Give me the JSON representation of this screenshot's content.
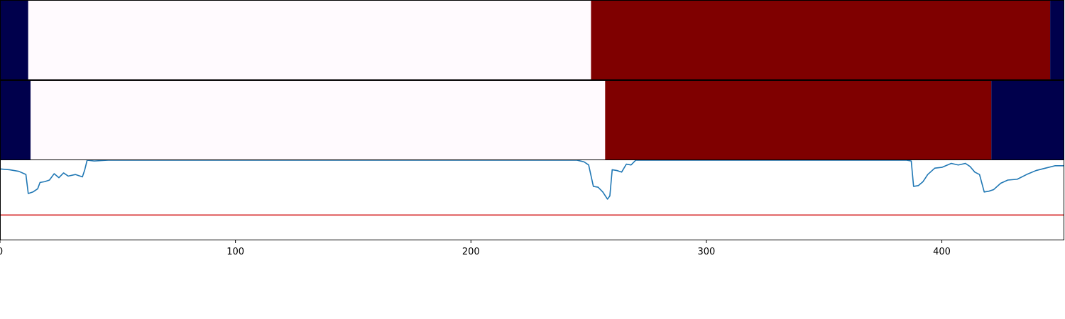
{
  "chart_data": [
    {
      "type": "heatmap",
      "colormap": "seismic",
      "colors": {
        "low": "#00004c",
        "mid": "#fffafe",
        "high": "#7f0000"
      },
      "x_range": [
        0,
        452
      ],
      "segments": [
        {
          "start": 0,
          "end": 12,
          "level": "low"
        },
        {
          "start": 12,
          "end": 251,
          "level": "mid"
        },
        {
          "start": 251,
          "end": 446,
          "level": "high"
        },
        {
          "start": 446,
          "end": 452,
          "level": "low"
        }
      ]
    },
    {
      "type": "heatmap",
      "colormap": "seismic",
      "colors": {
        "low": "#00004c",
        "mid": "#fffafe",
        "high": "#7f0000"
      },
      "x_range": [
        0,
        452
      ],
      "segments": [
        {
          "start": 0,
          "end": 13,
          "level": "low"
        },
        {
          "start": 13,
          "end": 257,
          "level": "mid"
        },
        {
          "start": 257,
          "end": 421,
          "level": "high"
        },
        {
          "start": 421,
          "end": 452,
          "level": "low"
        }
      ]
    },
    {
      "type": "line",
      "xlim": [
        0,
        452
      ],
      "ylim": [
        0,
        1
      ],
      "xticks": [
        0,
        100,
        200,
        300,
        400
      ],
      "grid": false,
      "series": [
        {
          "color": "#1f77b4",
          "points": [
            [
              0,
              0.89
            ],
            [
              4,
              0.88
            ],
            [
              8,
              0.86
            ],
            [
              11,
              0.82
            ],
            [
              12,
              0.58
            ],
            [
              14,
              0.6
            ],
            [
              16,
              0.64
            ],
            [
              17,
              0.72
            ],
            [
              19,
              0.73
            ],
            [
              21,
              0.75
            ],
            [
              23,
              0.83
            ],
            [
              25,
              0.78
            ],
            [
              27,
              0.84
            ],
            [
              29,
              0.8
            ],
            [
              32,
              0.82
            ],
            [
              35,
              0.79
            ],
            [
              36,
              0.88
            ],
            [
              37,
              1.0
            ],
            [
              40,
              0.99
            ],
            [
              46,
              1.0
            ],
            [
              55,
              1.0
            ],
            [
              120,
              1.0
            ],
            [
              200,
              1.0
            ],
            [
              245,
              1.0
            ],
            [
              248,
              0.98
            ],
            [
              250,
              0.94
            ],
            [
              252,
              0.67
            ],
            [
              254,
              0.66
            ],
            [
              256,
              0.6
            ],
            [
              258,
              0.51
            ],
            [
              259,
              0.55
            ],
            [
              260,
              0.88
            ],
            [
              262,
              0.87
            ],
            [
              264,
              0.85
            ],
            [
              266,
              0.95
            ],
            [
              268,
              0.94
            ],
            [
              270,
              1.0
            ],
            [
              275,
              1.0
            ],
            [
              300,
              1.0
            ],
            [
              360,
              1.0
            ],
            [
              385,
              1.0
            ],
            [
              387,
              0.99
            ],
            [
              388,
              0.67
            ],
            [
              390,
              0.68
            ],
            [
              392,
              0.73
            ],
            [
              394,
              0.82
            ],
            [
              397,
              0.9
            ],
            [
              400,
              0.91
            ],
            [
              404,
              0.96
            ],
            [
              407,
              0.94
            ],
            [
              410,
              0.96
            ],
            [
              412,
              0.92
            ],
            [
              414,
              0.85
            ],
            [
              416,
              0.82
            ],
            [
              418,
              0.6
            ],
            [
              420,
              0.61
            ],
            [
              422,
              0.63
            ],
            [
              425,
              0.71
            ],
            [
              428,
              0.75
            ],
            [
              432,
              0.76
            ],
            [
              436,
              0.82
            ],
            [
              440,
              0.87
            ],
            [
              444,
              0.9
            ],
            [
              448,
              0.93
            ],
            [
              452,
              0.93
            ]
          ]
        },
        {
          "color": "#d62728",
          "points": [
            [
              0,
              0.31
            ],
            [
              452,
              0.31
            ]
          ]
        }
      ]
    }
  ]
}
